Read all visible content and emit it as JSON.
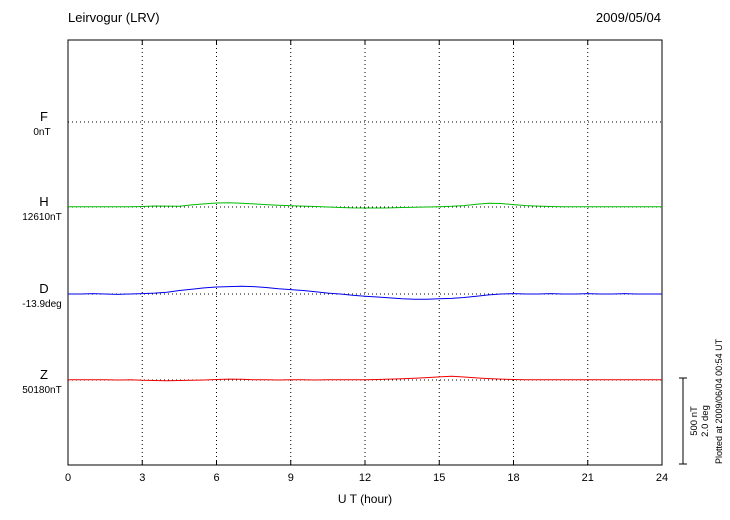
{
  "header": {
    "title": "Leirvogur (LRV)",
    "date": "2009/05/04"
  },
  "footer_note": "Plotted at 2009/06/04 00:54 UT",
  "scale_bar_labels": {
    "nt": "500 nT",
    "deg": "2.0 deg"
  },
  "chart_data": {
    "type": "line",
    "title": "Leirvogur (LRV) magnetogram",
    "date": "2009/05/04",
    "xlabel": "U T (hour)",
    "x_range": [
      0,
      24
    ],
    "x_ticks": [
      0,
      3,
      6,
      9,
      12,
      15,
      18,
      21,
      24
    ],
    "x_start": 0,
    "x_step_hours": 0.5,
    "grid": "dotted",
    "legend_position": "left",
    "scale_bar": {
      "nT": 500,
      "deg": 2.0
    },
    "series": [
      {
        "name": "F",
        "baseline_value": "0nT",
        "units": "nT",
        "color": "#FFA500",
        "values": []
      },
      {
        "name": "H",
        "baseline_value": "12610nT",
        "units": "nT",
        "color": "#00BB00",
        "values": [
          2,
          2,
          1,
          2,
          2,
          1,
          3,
          6,
          5,
          4,
          12,
          18,
          23,
          25,
          22,
          18,
          14,
          10,
          7,
          5,
          3,
          0,
          -3,
          -5,
          -6,
          -6,
          -5,
          -3,
          -1,
          0,
          2,
          4,
          8,
          16,
          22,
          20,
          14,
          8,
          5,
          3,
          2,
          1,
          2,
          2,
          2,
          1,
          2,
          2,
          2
        ]
      },
      {
        "name": "D",
        "baseline_value": "-13.9deg",
        "units": "deg",
        "color": "#0000EE",
        "values": [
          0,
          0,
          0.01,
          0,
          -0.01,
          0,
          0.01,
          0.02,
          0.04,
          0.08,
          0.11,
          0.14,
          0.16,
          0.17,
          0.18,
          0.17,
          0.15,
          0.12,
          0.1,
          0.08,
          0.05,
          0.02,
          0,
          -0.03,
          -0.05,
          -0.07,
          -0.09,
          -0.11,
          -0.12,
          -0.12,
          -0.11,
          -0.1,
          -0.08,
          -0.05,
          -0.02,
          0,
          0.01,
          0,
          0,
          0.01,
          0,
          0,
          0.01,
          0,
          0,
          0.01,
          0,
          0,
          0
        ]
      },
      {
        "name": "Z",
        "baseline_value": "50180nT",
        "units": "nT",
        "color": "#EE0000",
        "values": [
          2,
          1,
          2,
          1,
          0,
          1,
          -2,
          -3,
          -4,
          -3,
          -2,
          0,
          3,
          5,
          4,
          2,
          1,
          0,
          1,
          1,
          0,
          1,
          2,
          1,
          2,
          3,
          5,
          7,
          10,
          14,
          18,
          22,
          17,
          12,
          8,
          5,
          3,
          1,
          2,
          1,
          1,
          2,
          1,
          1,
          2,
          1,
          1,
          1,
          1
        ]
      }
    ]
  }
}
